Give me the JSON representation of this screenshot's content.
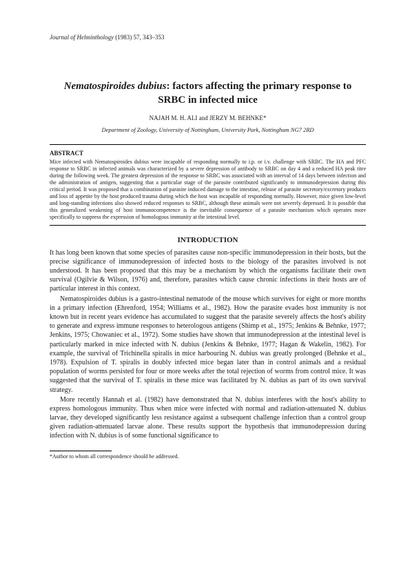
{
  "journal": {
    "name": "Journal of Helminthology",
    "year": "(1983)",
    "volume": "57,",
    "pages": "343–353"
  },
  "title": {
    "species": "Nematospiroides dubius",
    "rest": ": factors affecting the primary response to SRBC in infected mice"
  },
  "authors": "NAJAH M. H. ALI and JERZY M. BEHNKE*",
  "affiliation": "Department of Zoology, University of Nottingham, University Park, Nottingham NG7 2RD",
  "abstract": {
    "label": "ABSTRACT",
    "text": "Mice infected with Nematospiroides dubius were incapable of responding normally to i.p. or i.v. challenge with SRBC. The HA and PFC response to SRBC in infected animals was characterized by a severe depression of antibody to SRBC on day 4 and a reduced HA peak titre during the following week. The greatest depression of the response to SRBC was associated with an interval of 14 days between infection and the administration of antigen, suggesting that a particular stage of the parasite contributed significantly to immunodepression during this critical period. It was proposed that a combination of parasite induced damage to the intestine, release of parasite secretory/excretory products and loss of appetite by the host produced trauma during which the host was incapable of responding normally. However, mice given low-level and long-standing infections also showed reduced responses to SRBC, although these animals were not severely depressed. It is possible that this generalized weakening of host immunocompetence is the inevitable consequence of a parasite mechanism which operates more specifically to suppress the expression of homologous immunity at the intestinal level."
  },
  "sections": {
    "intro_heading": "INTRODUCTION",
    "intro_p1": "It has long been known that some species of parasites cause non-specific immunodepression in their hosts, but the precise significance of immunodepression of infected hosts to the biology of the parasites involved is not understood. It has been proposed that this may be a mechanism by which the organisms facilitate their own survival (Ogilvie & Wilson, 1976) and, therefore, parasites which cause chronic infections in their hosts are of particular interest in this context.",
    "intro_p2": "Nematospiroides dubius is a gastro-intestinal nematode of the mouse which survives for eight or more months in a primary infection (Ehrenford, 1954; Williams et al., 1982). How the parasite evades host immunity is not known but in recent years evidence has accumulated to suggest that the parasite severely affects the host's ability to generate and express immune responses to heterologous antigens (Shimp et al., 1975; Jenkins & Behnke, 1977; Jenkins, 1975; Chowaniec et al., 1972). Some studies have shown that immunodepression at the intestinal level is particularly marked in mice infected with N. dubius (Jenkins & Behnke, 1977; Hagan & Wakelin, 1982). For example, the survival of Trichinella spiralis in mice harbouring N. dubius was greatly prolonged (Behnke et al., 1978). Expulsion of T. spiralis in doubly infected mice began later than in control animals and a residual population of worms persisted for four or more weeks after the total rejection of worms from control mice. It was suggested that the survival of T. spiralis in these mice was facilitated by N. dubius as part of its own survival strategy.",
    "intro_p3": "More recently Hannah et al. (1982) have demonstrated that N. dubius interferes with the host's ability to express homologous immunity. Thus when mice were infected with normal and radiation-attenuated N. dubius larvae, they developed significantly less resistance against a subsequent challenge infection than a control group given radiation-attenuated larvae alone. These results support the hypothesis that immunodepression during infection with N. dubius is of some functional significance to"
  },
  "footnote": "*Author to whom all correspondence should be addressed."
}
